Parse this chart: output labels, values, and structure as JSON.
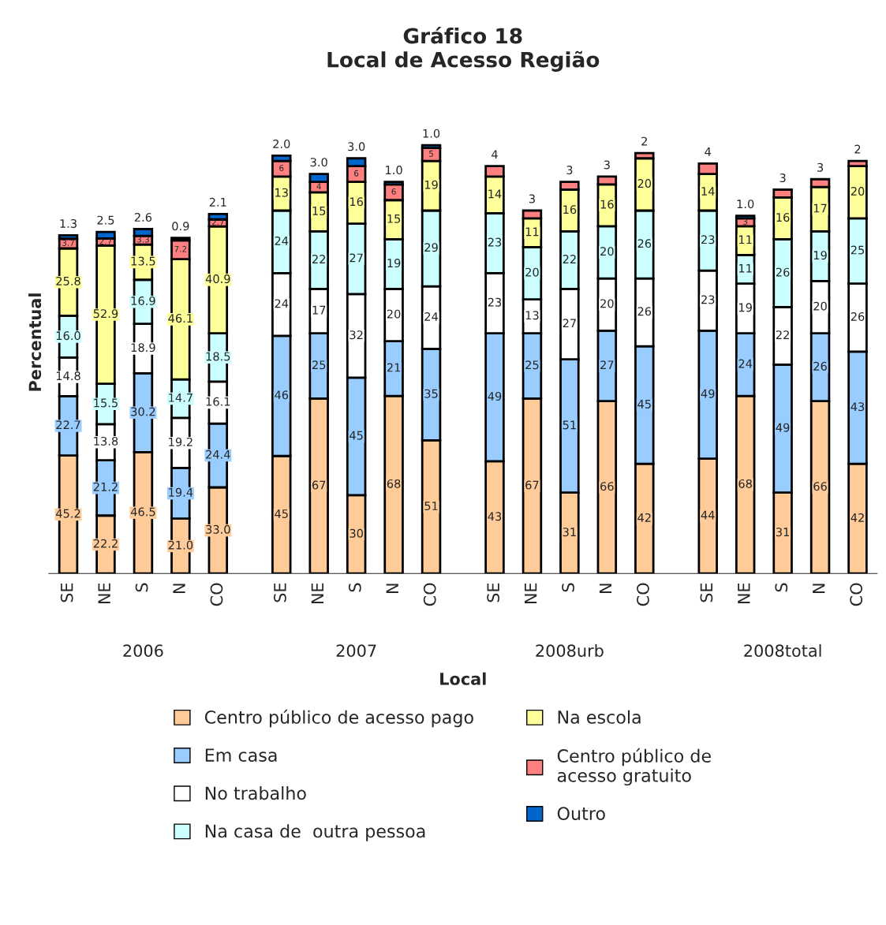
{
  "chart_data": {
    "type": "bar",
    "stacked": true,
    "title": "Gráfico 18\nLocal de Acesso Região",
    "xlabel": "Local",
    "ylabel": "Percentual",
    "legend": "bottom",
    "grid": false,
    "categories": [
      "SE",
      "NE",
      "S",
      "N",
      "CO",
      "SE",
      "NE",
      "S",
      "N",
      "CO",
      "SE",
      "NE",
      "S",
      "N",
      "CO",
      "SE",
      "NE",
      "S",
      "N",
      "CO"
    ],
    "annotations": [
      "2006",
      "2007",
      "2008urb",
      "2008total"
    ],
    "series": [
      {
        "name": "Centro público de acesso pago",
        "color": "#ffcc99",
        "values": [
          45.2,
          22.2,
          46.5,
          21.0,
          33.0,
          45,
          67,
          30,
          68,
          51,
          43,
          67,
          31,
          66,
          42,
          44,
          68,
          31,
          66,
          42
        ],
        "value_labels": [
          "45.2",
          "22.2",
          "46.5",
          "21.0",
          "33.0",
          "45",
          "67",
          "30",
          "68",
          "51",
          "43",
          "67",
          "31",
          "66",
          "42",
          "44",
          "68",
          "31",
          "66",
          "42"
        ]
      },
      {
        "name": "Em casa",
        "color": "#99ccff",
        "values": [
          22.7,
          21.2,
          30.2,
          19.4,
          24.4,
          46,
          25,
          45,
          21,
          35,
          49,
          25,
          51,
          27,
          45,
          49,
          24,
          49,
          26,
          43
        ],
        "value_labels": [
          "22.7",
          "21.2",
          "30.2",
          "19.4",
          "24.4",
          "46",
          "25",
          "45",
          "21",
          "35",
          "49",
          "25",
          "51",
          "27",
          "45",
          "49",
          "24",
          "49",
          "26",
          "43"
        ]
      },
      {
        "name": "No trabalho",
        "color": "#ffffff",
        "values": [
          14.8,
          13.8,
          18.9,
          19.2,
          16.1,
          24,
          17,
          32,
          20,
          24,
          23,
          13,
          27,
          20,
          26,
          23,
          19,
          22,
          20,
          26
        ],
        "value_labels": [
          "14.8",
          "13.8",
          "18.9",
          "19.2",
          "16.1",
          "24",
          "17",
          "32",
          "20",
          "24",
          "23",
          "13",
          "27",
          "20",
          "26",
          "23",
          "19",
          "22",
          "20",
          "26"
        ]
      },
      {
        "name": "Na casa de  outra pessoa",
        "color": "#ccffff",
        "values": [
          16.0,
          15.5,
          16.9,
          14.7,
          18.5,
          24,
          22,
          27,
          19,
          29,
          23,
          20,
          22,
          20,
          26,
          23,
          11,
          26,
          19,
          25
        ],
        "value_labels": [
          "16.0",
          "15.5",
          "16.9",
          "14.7",
          "18.5",
          "24",
          "22",
          "27",
          "19",
          "29",
          "23",
          "20",
          "22",
          "20",
          "26",
          "23",
          "11",
          "26",
          "19",
          "25"
        ]
      },
      {
        "name": "Na escola",
        "color": "#ffff99",
        "values": [
          25.8,
          52.9,
          13.5,
          46.1,
          40.9,
          13,
          15,
          16,
          15,
          19,
          14,
          11,
          16,
          16,
          20,
          14,
          11,
          16,
          17,
          20
        ],
        "value_labels": [
          "25.8",
          "52.9",
          "13.5",
          "46.1",
          "40.9",
          "13",
          "15",
          "16",
          "15",
          "19",
          "14",
          "11",
          "16",
          "16",
          "20",
          "14",
          "11",
          "16",
          "17",
          "20"
        ]
      },
      {
        "name": "Centro público de\nacesso gratuito",
        "color": "#ff8080",
        "values": [
          3.7,
          2.7,
          3.3,
          7.2,
          2.7,
          6,
          4,
          6,
          6,
          5,
          4,
          3,
          3,
          3,
          2,
          4,
          3,
          3,
          3,
          2
        ],
        "value_labels": [
          "3.7",
          "2.7",
          "3.3",
          "7.2",
          "2.7",
          "6",
          "4",
          "6",
          "6",
          "5",
          "4",
          "3",
          "3",
          "3",
          "2",
          "4",
          "3",
          "3",
          "3",
          "2"
        ]
      },
      {
        "name": "Outro",
        "color": "#0066cc",
        "values": [
          1.3,
          2.5,
          2.6,
          0.9,
          2.1,
          2.0,
          3.0,
          3.0,
          1.0,
          1.0,
          null,
          null,
          null,
          null,
          null,
          null,
          1.0,
          null,
          null,
          null
        ],
        "value_labels": [
          "1.3",
          "2.5",
          "2.6",
          "0.9",
          "2.1",
          "2.0",
          "3.0",
          "3.0",
          "1.0",
          "1.0",
          null,
          null,
          null,
          null,
          null,
          null,
          "1.0",
          null,
          null,
          null
        ]
      }
    ]
  }
}
